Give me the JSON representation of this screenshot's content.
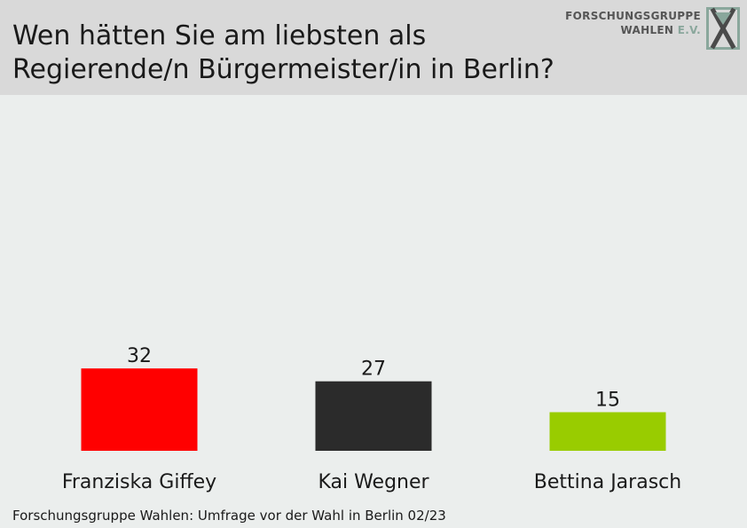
{
  "header": {
    "title_line1": "Wen hätten Sie am liebsten als",
    "title_line2": "Regierende/n Bürgermeister/in in Berlin?"
  },
  "logo": {
    "line1": "FORSCHUNGSGRUPPE",
    "line2_main": "WAHLEN ",
    "line2_accent": "E.V.",
    "icon": "x-logo-icon"
  },
  "chart_data": {
    "type": "bar",
    "categories": [
      "Franziska Giffey",
      "Kai Wegner",
      "Bettina Jarasch"
    ],
    "values": [
      32,
      27,
      15
    ],
    "colors": [
      "#ff0000",
      "#2b2b2b",
      "#99cc00"
    ],
    "ylim": [
      0,
      100
    ],
    "grid": false,
    "legend": "none"
  },
  "footer": {
    "source": "Forschungsgruppe Wahlen: Umfrage vor der Wahl in Berlin 02/23"
  }
}
